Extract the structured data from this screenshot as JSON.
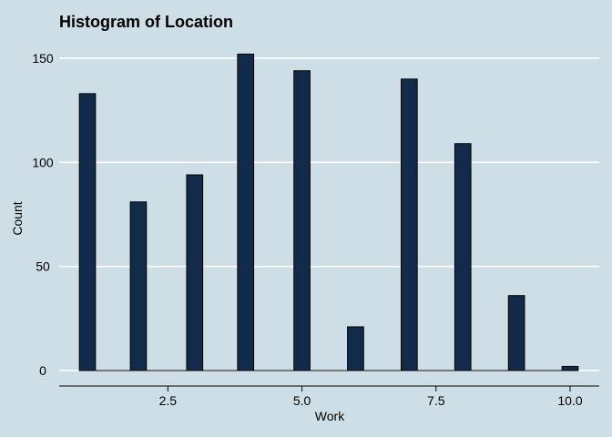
{
  "chart_data": {
    "type": "bar",
    "title": "Histogram of Location",
    "xlabel": "Work",
    "ylabel": "Count",
    "xlim": [
      0.0,
      10.5
    ],
    "ylim": [
      0,
      160
    ],
    "x_ticks": [
      2.5,
      5.0,
      7.5,
      10.0
    ],
    "x_tick_labels": [
      "2.5",
      "5.0",
      "7.5",
      "10.0"
    ],
    "y_ticks": [
      0,
      50,
      100,
      150
    ],
    "y_tick_labels": [
      "0",
      "50",
      "100",
      "150"
    ],
    "bin_width": 0.3,
    "bins": [
      {
        "x": 1.0,
        "value": 133
      },
      {
        "x": 1.95,
        "value": 81
      },
      {
        "x": 3.0,
        "value": 94
      },
      {
        "x": 3.95,
        "value": 152
      },
      {
        "x": 5.0,
        "value": 144
      },
      {
        "x": 6.0,
        "value": 21
      },
      {
        "x": 7.0,
        "value": 140
      },
      {
        "x": 8.0,
        "value": 109
      },
      {
        "x": 9.0,
        "value": 36
      },
      {
        "x": 10.0,
        "value": 2
      }
    ],
    "bar_color": "#132b4b",
    "background_color": "#cddee6",
    "grid": true,
    "legend": "none"
  }
}
